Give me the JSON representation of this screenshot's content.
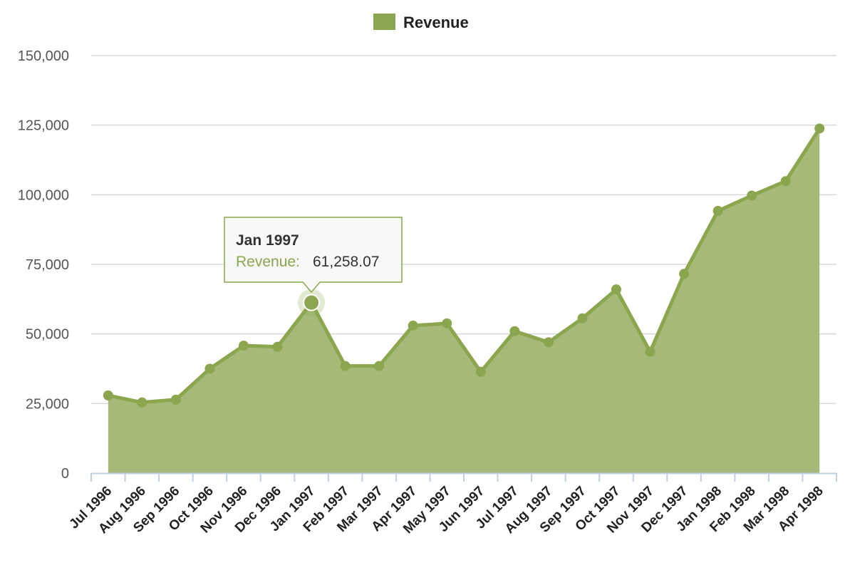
{
  "colors": {
    "series": "#8ba64e",
    "area": "#a5ba78",
    "grid": "#d8d8d8",
    "axis": "#c0d0e0",
    "tooltip_border": "#8ba64e"
  },
  "tooltip": {
    "title": "Jan 1997",
    "label": "Revenue:",
    "value": "61,258.07",
    "category": "Jan 1997"
  },
  "chart_data": {
    "type": "area",
    "title": "",
    "xlabel": "",
    "ylabel": "",
    "legend": {
      "position": "top-center"
    },
    "grid": true,
    "ylim": [
      0,
      150000
    ],
    "yticks": [
      0,
      25000,
      50000,
      75000,
      100000,
      125000,
      150000
    ],
    "ytick_labels": [
      "0",
      "25,000",
      "50,000",
      "75,000",
      "100,000",
      "125,000",
      "150,000"
    ],
    "categories": [
      "Jul 1996",
      "Aug 1996",
      "Sep 1996",
      "Oct 1996",
      "Nov 1996",
      "Dec 1996",
      "Jan 1997",
      "Feb 1997",
      "Mar 1997",
      "Apr 1997",
      "May 1997",
      "Jun 1997",
      "Jul 1997",
      "Aug 1997",
      "Sep 1997",
      "Oct 1997",
      "Nov 1997",
      "Dec 1997",
      "Jan 1998",
      "Feb 1998",
      "Mar 1998",
      "Apr 1998"
    ],
    "series": [
      {
        "name": "Revenue",
        "values": [
          27900,
          25400,
          26400,
          37500,
          45800,
          45400,
          61258.07,
          38500,
          38500,
          53000,
          53800,
          36400,
          51000,
          47000,
          55600,
          66000,
          43600,
          71600,
          94200,
          99700,
          104900,
          123800
        ]
      }
    ]
  }
}
